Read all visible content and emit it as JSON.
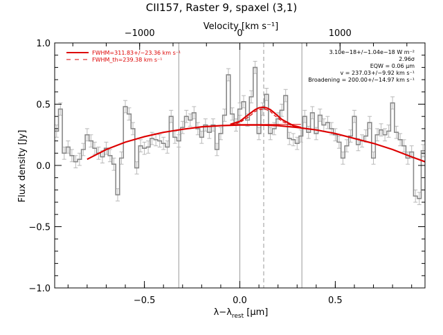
{
  "chart_data": {
    "type": "line",
    "title": "CII157, Raster 9, spaxel (3,1)",
    "xlabel_main": "λ−λ",
    "xlabel_sub": "rest",
    "xlabel_unit": " [μm]",
    "ylabel": "Flux density [Jy]",
    "top_xlabel": "Velocity [km s⁻¹]",
    "xlim": [
      -0.97,
      0.97
    ],
    "ylim": [
      -1.0,
      1.0
    ],
    "x_ticks": [
      -0.5,
      0.0,
      0.5
    ],
    "x_tick_labels": [
      "−0.5",
      "0.0",
      "0.5"
    ],
    "y_ticks": [
      -1.0,
      -0.5,
      0.0,
      0.5,
      1.0
    ],
    "y_tick_labels": [
      "−1.0",
      "−0.5",
      "0.0",
      "0.5",
      "1.0"
    ],
    "top_ticks_x": [
      -0.525,
      0.0,
      0.525
    ],
    "top_tick_labels": [
      "−1000",
      "0",
      "1000"
    ],
    "vlines_solid": [
      -0.32,
      0.0,
      0.325
    ],
    "vline_dashed": 0.125,
    "legend": [
      {
        "label": "FWHM=311.83+/−23.36 km s⁻¹",
        "style": "solid"
      },
      {
        "label": "FWHM_th=239.38 km s⁻¹",
        "style": "dashed"
      }
    ],
    "annotations": [
      "3.10e−18+/−1.04e−18 W m⁻²",
      "2.96σ",
      "EQW = 0.06 μm",
      "v = 237.03+/−9.92 km s⁻¹",
      "Broadening = 200.00+/−14.97 km s⁻¹"
    ],
    "colors": {
      "data": "#888888",
      "fit": "#dd0000",
      "error": "#b8b8b8",
      "vline": "#999999"
    },
    "series": [
      {
        "name": "spectrum",
        "style": "step",
        "x": [
          -0.96,
          -0.94,
          -0.92,
          -0.9,
          -0.88,
          -0.86,
          -0.84,
          -0.82,
          -0.8,
          -0.78,
          -0.76,
          -0.74,
          -0.72,
          -0.7,
          -0.68,
          -0.66,
          -0.64,
          -0.62,
          -0.6,
          -0.58,
          -0.56,
          -0.54,
          -0.52,
          -0.5,
          -0.48,
          -0.46,
          -0.44,
          -0.42,
          -0.4,
          -0.38,
          -0.36,
          -0.34,
          -0.32,
          -0.3,
          -0.28,
          -0.26,
          -0.24,
          -0.22,
          -0.2,
          -0.18,
          -0.16,
          -0.14,
          -0.12,
          -0.1,
          -0.08,
          -0.06,
          -0.04,
          -0.02,
          0.0,
          0.02,
          0.04,
          0.06,
          0.08,
          0.1,
          0.12,
          0.14,
          0.16,
          0.18,
          0.2,
          0.22,
          0.24,
          0.26,
          0.28,
          0.3,
          0.32,
          0.34,
          0.36,
          0.38,
          0.4,
          0.42,
          0.44,
          0.46,
          0.48,
          0.5,
          0.52,
          0.54,
          0.56,
          0.58,
          0.6,
          0.62,
          0.64,
          0.66,
          0.68,
          0.7,
          0.72,
          0.74,
          0.76,
          0.78,
          0.8,
          0.82,
          0.84,
          0.86,
          0.88,
          0.9,
          0.92,
          0.94,
          0.96
        ],
        "y": [
          0.28,
          0.46,
          0.1,
          0.15,
          0.08,
          0.03,
          0.05,
          0.13,
          0.25,
          0.2,
          0.14,
          0.1,
          0.07,
          0.14,
          0.08,
          0.01,
          -0.24,
          0.06,
          0.48,
          0.42,
          0.3,
          -0.02,
          0.16,
          0.14,
          0.15,
          0.22,
          0.21,
          0.2,
          0.18,
          0.15,
          0.4,
          0.23,
          0.2,
          0.31,
          0.4,
          0.37,
          0.43,
          0.3,
          0.23,
          0.33,
          0.27,
          0.33,
          0.13,
          0.26,
          0.41,
          0.74,
          0.42,
          0.33,
          0.46,
          0.52,
          0.37,
          0.56,
          0.8,
          0.26,
          0.46,
          0.58,
          0.26,
          0.3,
          0.38,
          0.45,
          0.57,
          0.22,
          0.21,
          0.18,
          0.24,
          0.4,
          0.27,
          0.43,
          0.26,
          0.41,
          0.33,
          0.35,
          0.3,
          0.25,
          0.19,
          0.06,
          0.16,
          0.24,
          0.4,
          0.17,
          0.2,
          0.24,
          0.35,
          0.06,
          0.25,
          0.29,
          0.25,
          0.28,
          0.51,
          0.27,
          0.21,
          0.16,
          0.06,
          0.11,
          -0.25,
          -0.27,
          0.12
        ],
        "err": 0.05
      },
      {
        "name": "continuum",
        "style": "line",
        "x": [
          -0.8,
          -0.7,
          -0.6,
          -0.5,
          -0.4,
          -0.3,
          -0.2,
          -0.1,
          0.0,
          0.1,
          0.2,
          0.3,
          0.4,
          0.5,
          0.6,
          0.7,
          0.8,
          0.9,
          0.97
        ],
        "y": [
          0.05,
          0.13,
          0.19,
          0.235,
          0.27,
          0.295,
          0.315,
          0.325,
          0.33,
          0.33,
          0.325,
          0.31,
          0.29,
          0.26,
          0.22,
          0.18,
          0.13,
          0.07,
          0.03
        ]
      },
      {
        "name": "gaussian_fit",
        "style": "line",
        "x": [
          -0.05,
          0.0,
          0.05,
          0.08,
          0.1,
          0.12,
          0.14,
          0.16,
          0.18,
          0.22,
          0.28,
          0.32
        ],
        "y": [
          0.335,
          0.36,
          0.42,
          0.455,
          0.47,
          0.475,
          0.47,
          0.455,
          0.43,
          0.375,
          0.325,
          0.31
        ]
      },
      {
        "name": "fwhm_th",
        "style": "dashed",
        "x": [
          -0.05,
          0.0,
          0.05,
          0.08,
          0.1,
          0.12,
          0.14,
          0.16,
          0.18,
          0.22,
          0.28,
          0.32
        ],
        "y": [
          0.33,
          0.35,
          0.4,
          0.44,
          0.455,
          0.46,
          0.455,
          0.44,
          0.41,
          0.36,
          0.32,
          0.31
        ]
      },
      {
        "name": "baseline",
        "style": "line",
        "x": [
          -0.05,
          0.32
        ],
        "y": [
          0.335,
          0.335
        ]
      }
    ]
  }
}
